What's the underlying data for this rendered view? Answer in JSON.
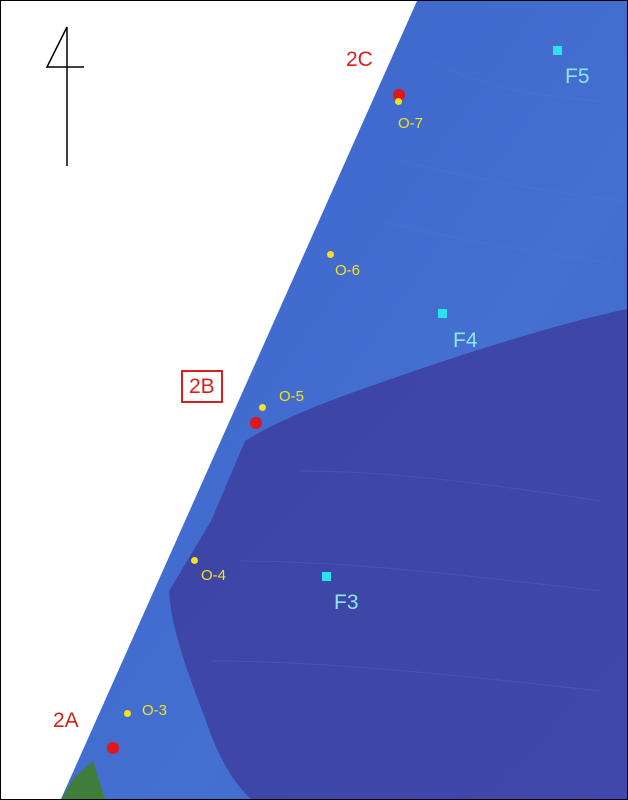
{
  "map": {
    "north_arrow": {
      "icon": "north-arrow-icon"
    },
    "colors": {
      "shelf_blue": "#3f6bcc",
      "deep_blue": "#3e46a6",
      "shore_green": "#3f7d3a",
      "site_red": "#e0161b",
      "obs_yellow": "#f4e21a",
      "fix_cyan": "#2fe0ef"
    },
    "sites": [
      {
        "label": "2A",
        "boxed": false
      },
      {
        "label": "2B",
        "boxed": true
      },
      {
        "label": "2C",
        "boxed": false
      }
    ],
    "observation_points": [
      "O-3",
      "O-4",
      "O-5",
      "O-6",
      "O-7"
    ],
    "fixed_stations": [
      "F3",
      "F4",
      "F5"
    ]
  }
}
